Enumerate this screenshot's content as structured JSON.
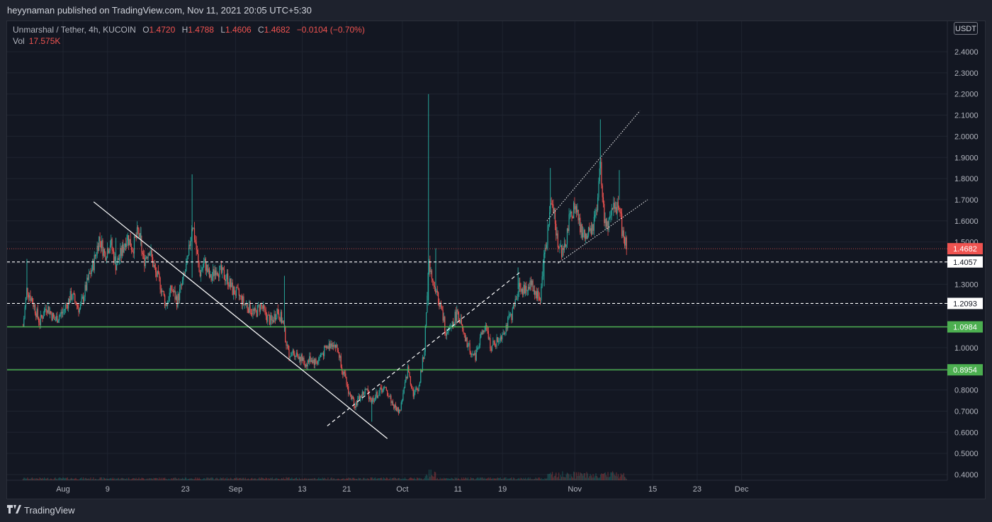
{
  "header": {
    "published_text": "heyynaman published on TradingView.com, Nov 11, 2021 20:05 UTC+5:30"
  },
  "legend": {
    "symbol": "Unmarshal / Tether, 4h, KUCOIN",
    "open_label": "O",
    "open": "1.4720",
    "high_label": "H",
    "high": "1.4788",
    "low_label": "L",
    "low": "1.4606",
    "close_label": "C",
    "close": "1.4682",
    "change": "−0.0104 (−0.70%)",
    "vol_label": "Vol",
    "vol": "17.575K"
  },
  "currency_button": "USDT",
  "footer": {
    "brand": "TradingView",
    "logo_icon": "tradingview-logo-icon"
  },
  "colors": {
    "background": "#131722",
    "up": "#26a69a",
    "down": "#ef5350",
    "support_line": "#4caf50",
    "grid": "#1f2430",
    "axis_text": "#b2b5be"
  },
  "chart_data": {
    "type": "candlestick",
    "ylim": [
      0.4,
      2.45
    ],
    "y_ticks": [
      "0.4000",
      "0.5000",
      "0.6000",
      "0.7000",
      "0.8000",
      "0.9000",
      "1.0000",
      "1.1000",
      "1.2000",
      "1.3000",
      "1.4000",
      "1.5000",
      "1.6000",
      "1.7000",
      "1.8000",
      "1.9000",
      "2.0000",
      "2.1000",
      "2.2000",
      "2.3000",
      "2.4000"
    ],
    "x_ticks": [
      {
        "label": "Aug",
        "day": 0
      },
      {
        "label": "9",
        "day": 8
      },
      {
        "label": "23",
        "day": 22
      },
      {
        "label": "Sep",
        "day": 31
      },
      {
        "label": "13",
        "day": 43
      },
      {
        "label": "21",
        "day": 51
      },
      {
        "label": "Oct",
        "day": 61
      },
      {
        "label": "11",
        "day": 71
      },
      {
        "label": "19",
        "day": 79
      },
      {
        "label": "Nov",
        "day": 92
      },
      {
        "label": "15",
        "day": 106
      },
      {
        "label": "23",
        "day": 114
      },
      {
        "label": "Dec",
        "day": 122
      }
    ],
    "x_range_days": [
      -7.5,
      125.5
    ],
    "last_day": 101.3,
    "price_labels": [
      {
        "value": 1.4682,
        "text": "1.4682",
        "style": "last"
      },
      {
        "value": 1.4057,
        "text": "1.4057",
        "style": "level-white"
      },
      {
        "value": 1.2093,
        "text": "1.2093",
        "style": "level-white"
      },
      {
        "value": 1.0984,
        "text": "1.0984",
        "style": "level-green"
      },
      {
        "value": 0.8954,
        "text": "0.8954",
        "style": "level-green"
      }
    ],
    "horizontal_levels": [
      {
        "value": 1.4057,
        "style": "dashed-white"
      },
      {
        "value": 1.2093,
        "style": "dashed-white"
      },
      {
        "value": 1.0984,
        "style": "solid-green"
      },
      {
        "value": 0.8954,
        "style": "solid-green"
      },
      {
        "value": 1.4682,
        "style": "dotted-red"
      }
    ],
    "trendlines": [
      {
        "from": [
          5.5,
          1.69
        ],
        "to": [
          58.3,
          0.57
        ],
        "style": "solid-white"
      },
      {
        "from": [
          47.5,
          0.63
        ],
        "to": [
          82.3,
          1.36
        ],
        "style": "dashed-white"
      },
      {
        "from": [
          87,
          1.6
        ],
        "to": [
          103.7,
          2.12
        ],
        "style": "dotted-white"
      },
      {
        "from": [
          89,
          1.4
        ],
        "to": [
          105.1,
          1.7
        ],
        "style": "dotted-white"
      }
    ],
    "close_path": [
      [
        -7.2,
        1.1
      ],
      [
        -6.5,
        1.28
      ],
      [
        -5.5,
        1.22
      ],
      [
        -4.2,
        1.12
      ],
      [
        -3,
        1.2
      ],
      [
        -1.5,
        1.13
      ],
      [
        0,
        1.17
      ],
      [
        1.5,
        1.25
      ],
      [
        3,
        1.18
      ],
      [
        4.5,
        1.32
      ],
      [
        5.5,
        1.4
      ],
      [
        6.5,
        1.52
      ],
      [
        7.5,
        1.44
      ],
      [
        8.5,
        1.5
      ],
      [
        9.5,
        1.39
      ],
      [
        10.5,
        1.45
      ],
      [
        11.5,
        1.53
      ],
      [
        12.5,
        1.47
      ],
      [
        13.5,
        1.55
      ],
      [
        14.5,
        1.41
      ],
      [
        15.5,
        1.47
      ],
      [
        16.5,
        1.36
      ],
      [
        17.5,
        1.3
      ],
      [
        18.5,
        1.2
      ],
      [
        19.5,
        1.28
      ],
      [
        20.5,
        1.22
      ],
      [
        21.5,
        1.31
      ],
      [
        22.5,
        1.42
      ],
      [
        23.2,
        1.6
      ],
      [
        23.8,
        1.5
      ],
      [
        24.5,
        1.35
      ],
      [
        25.5,
        1.4
      ],
      [
        26.5,
        1.32
      ],
      [
        27.5,
        1.38
      ],
      [
        28.5,
        1.35
      ],
      [
        29.5,
        1.33
      ],
      [
        30.5,
        1.27
      ],
      [
        31.5,
        1.25
      ],
      [
        32.5,
        1.21
      ],
      [
        33.5,
        1.19
      ],
      [
        34.5,
        1.16
      ],
      [
        35.5,
        1.2
      ],
      [
        36.5,
        1.15
      ],
      [
        37.5,
        1.12
      ],
      [
        38.5,
        1.18
      ],
      [
        39.5,
        1.12
      ],
      [
        40.5,
        0.97
      ],
      [
        41.5,
        0.98
      ],
      [
        42.5,
        0.96
      ],
      [
        43.5,
        0.92
      ],
      [
        44.5,
        0.95
      ],
      [
        45.5,
        0.93
      ],
      [
        46.5,
        0.97
      ],
      [
        47.5,
        1.0
      ],
      [
        48.5,
        1.03
      ],
      [
        49.5,
        0.98
      ],
      [
        50.5,
        0.87
      ],
      [
        51.5,
        0.78
      ],
      [
        52.5,
        0.73
      ],
      [
        53.5,
        0.77
      ],
      [
        54.5,
        0.8
      ],
      [
        55.5,
        0.75
      ],
      [
        56.5,
        0.78
      ],
      [
        57.5,
        0.81
      ],
      [
        58.5,
        0.78
      ],
      [
        59.5,
        0.72
      ],
      [
        60.5,
        0.7
      ],
      [
        61.3,
        0.8
      ],
      [
        62,
        0.9
      ],
      [
        63,
        0.78
      ],
      [
        64,
        0.82
      ],
      [
        65,
        1.0
      ],
      [
        65.7,
        1.4
      ],
      [
        66.3,
        1.36
      ],
      [
        67,
        1.27
      ],
      [
        68,
        1.18
      ],
      [
        69,
        1.05
      ],
      [
        70,
        1.12
      ],
      [
        71,
        1.17
      ],
      [
        72,
        1.05
      ],
      [
        73,
        1.0
      ],
      [
        74,
        0.95
      ],
      [
        75,
        1.05
      ],
      [
        76,
        1.09
      ],
      [
        77,
        1.0
      ],
      [
        78,
        1.03
      ],
      [
        79,
        1.07
      ],
      [
        80,
        1.12
      ],
      [
        81,
        1.18
      ],
      [
        82,
        1.3
      ],
      [
        83,
        1.26
      ],
      [
        84,
        1.31
      ],
      [
        85,
        1.26
      ],
      [
        85.8,
        1.23
      ],
      [
        86.5,
        1.45
      ],
      [
        87.2,
        1.56
      ],
      [
        87.9,
        1.73
      ],
      [
        88.6,
        1.55
      ],
      [
        89.3,
        1.47
      ],
      [
        90,
        1.44
      ],
      [
        91,
        1.6
      ],
      [
        92,
        1.68
      ],
      [
        93,
        1.56
      ],
      [
        94,
        1.52
      ],
      [
        95,
        1.55
      ],
      [
        96,
        1.64
      ],
      [
        96.6,
        1.87
      ],
      [
        97.2,
        1.62
      ],
      [
        98,
        1.57
      ],
      [
        99,
        1.65
      ],
      [
        100,
        1.7
      ],
      [
        100.5,
        1.55
      ],
      [
        101,
        1.5
      ],
      [
        101.3,
        1.47
      ]
    ],
    "wick_spikes": [
      {
        "day": -6.5,
        "high": 1.42
      },
      {
        "day": 9.5,
        "high": 1.52
      },
      {
        "day": 14,
        "high": 1.57
      },
      {
        "day": 23.2,
        "high": 1.82,
        "low": 1.33
      },
      {
        "day": 39.8,
        "high": 1.34
      },
      {
        "day": 55.5,
        "high": 0.65
      },
      {
        "day": 65.7,
        "high": 2.2,
        "low": 1.2
      },
      {
        "day": 67,
        "high": 1.47
      },
      {
        "day": 81.8,
        "high": 1.38
      },
      {
        "day": 86.5,
        "high": 1.29
      },
      {
        "day": 87.6,
        "high": 1.85
      },
      {
        "day": 96.6,
        "high": 2.08
      },
      {
        "day": 100,
        "high": 1.84
      }
    ],
    "volume_bursts": [
      {
        "from": 65,
        "to": 67,
        "max": 0.22
      },
      {
        "from": 87,
        "to": 101.3,
        "max": 0.18
      },
      {
        "from": 40,
        "to": 41,
        "max": 0.04
      }
    ]
  }
}
